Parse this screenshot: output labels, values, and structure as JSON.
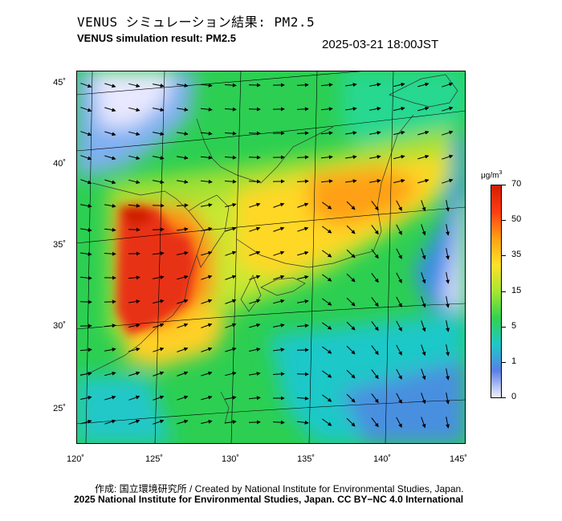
{
  "header": {
    "title_jp": "VENUS シミュレーション結果: PM2.5",
    "title_en": "VENUS simulation result: PM2.5",
    "timestamp": "2025-03-21 18:00JST"
  },
  "map": {
    "lat_labels": [
      "45˚",
      "40˚",
      "35˚",
      "30˚",
      "25˚"
    ],
    "lon_labels": [
      "120˚",
      "125˚",
      "130˚",
      "135˚",
      "140˚",
      "145˚"
    ]
  },
  "colorbar": {
    "unit": "μg/m",
    "unit_sup": "3",
    "labels": [
      "70",
      "50",
      "35",
      "15",
      "5",
      "1",
      "0"
    ],
    "colors": [
      "#f0f0ff",
      "#5b7fe6",
      "#1ec8c8",
      "#32d250",
      "#a6e632",
      "#ffe028",
      "#ffa014",
      "#ff3c14",
      "#d21e00"
    ]
  },
  "footer": {
    "credit_jp": "作成: 国立環境研究所 / Created by National Institute for Environmental Studies, Japan.",
    "credit_en": "2025 National Institute for Environmental Studies, Japan. CC BY−NC 4.0 International"
  }
}
